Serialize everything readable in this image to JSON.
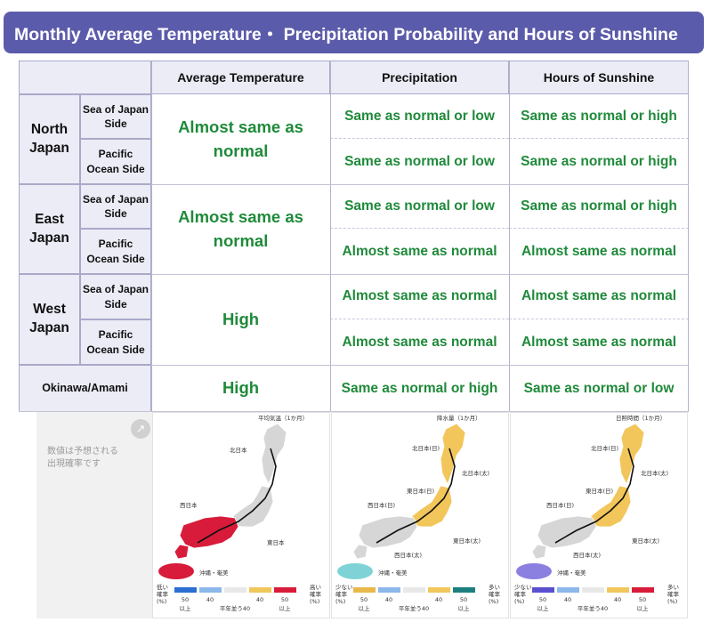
{
  "title": "Monthly Average Temperature・ Precipitation Probability and Hours of Sunshine",
  "headers": {
    "temperature": "Average Temperature",
    "precipitation": "Precipitation",
    "sunshine": "Hours of Sunshine"
  },
  "regions": [
    {
      "name": "North\nJapan",
      "temperature": "Almost same as\nnormal",
      "sides": [
        {
          "label": "Sea of Japan\nSide",
          "precipitation": "Same as normal or low",
          "sunshine": "Same as normal or high"
        },
        {
          "label": "Pacific\nOcean Side",
          "precipitation": "Same as normal or low",
          "sunshine": "Same as normal or high"
        }
      ]
    },
    {
      "name": "East\nJapan",
      "temperature": "Almost same as\nnormal",
      "sides": [
        {
          "label": "Sea of Japan\nSide",
          "precipitation": "Same as normal or low",
          "sunshine": "Same as normal or high"
        },
        {
          "label": "Pacific\nOcean Side",
          "precipitation": "Almost same as normal",
          "sunshine": "Almost same as normal"
        }
      ]
    },
    {
      "name": "West\nJapan",
      "temperature": "High",
      "sides": [
        {
          "label": "Sea of Japan\nSide",
          "precipitation": "Almost same as normal",
          "sunshine": "Almost same as normal"
        },
        {
          "label": "Pacific\nOcean Side",
          "precipitation": "Almost same as normal",
          "sunshine": "Almost same as normal"
        }
      ]
    },
    {
      "name": "Okinawa/Amami",
      "temperature": "High",
      "precipitation": "Same as normal or high",
      "sunshine": "Same as normal or low"
    }
  ],
  "note": "数値は予想される\n出現確率です",
  "maps": [
    {
      "title": "平均気温（1か月）",
      "labels": [
        "北日本",
        "西日本",
        "東日本",
        "沖縄・奄美"
      ],
      "legend_left": "低い\n確率\n(%)",
      "legend_right": "高い\n確率\n(%)",
      "legend_low": "#2a6fd1",
      "legend_high": "#d81b3a",
      "north": "#d6d6d6",
      "east": "#d6d6d6",
      "west": "#d81b3a",
      "okinawa": "#d81b3a"
    },
    {
      "title": "降水量（1か月）",
      "labels": [
        "北日本(日)",
        "北日本(太)",
        "東日本(日)",
        "西日本(日)",
        "東日本(太)",
        "西日本(太)",
        "沖縄・奄美"
      ],
      "legend_left": "少ない\n確率\n(%)",
      "legend_right": "多い\n確率\n(%)",
      "legend_low": "#e8b94a",
      "legend_high": "#1b7f7f",
      "north": "#f2c65b",
      "east": "#f2c65b",
      "west": "#d6d6d6",
      "okinawa": "#7fd3d6"
    },
    {
      "title": "日照時間（1か月）",
      "labels": [
        "北日本(日)",
        "北日本(太)",
        "東日本(日)",
        "西日本(日)",
        "東日本(太)",
        "西日本(太)",
        "沖縄・奄美"
      ],
      "legend_left": "少ない\n確率\n(%)",
      "legend_right": "多い\n確率\n(%)",
      "legend_low": "#5a4fcf",
      "legend_high": "#d81b3a",
      "north": "#f2c65b",
      "east": "#f2c65b",
      "west": "#d6d6d6",
      "okinawa": "#8b7fe0"
    }
  ],
  "legend_ticks": [
    "50",
    "40",
    "40",
    "50"
  ],
  "legend_sub": [
    "以上",
    "平年並う40",
    "以上"
  ]
}
